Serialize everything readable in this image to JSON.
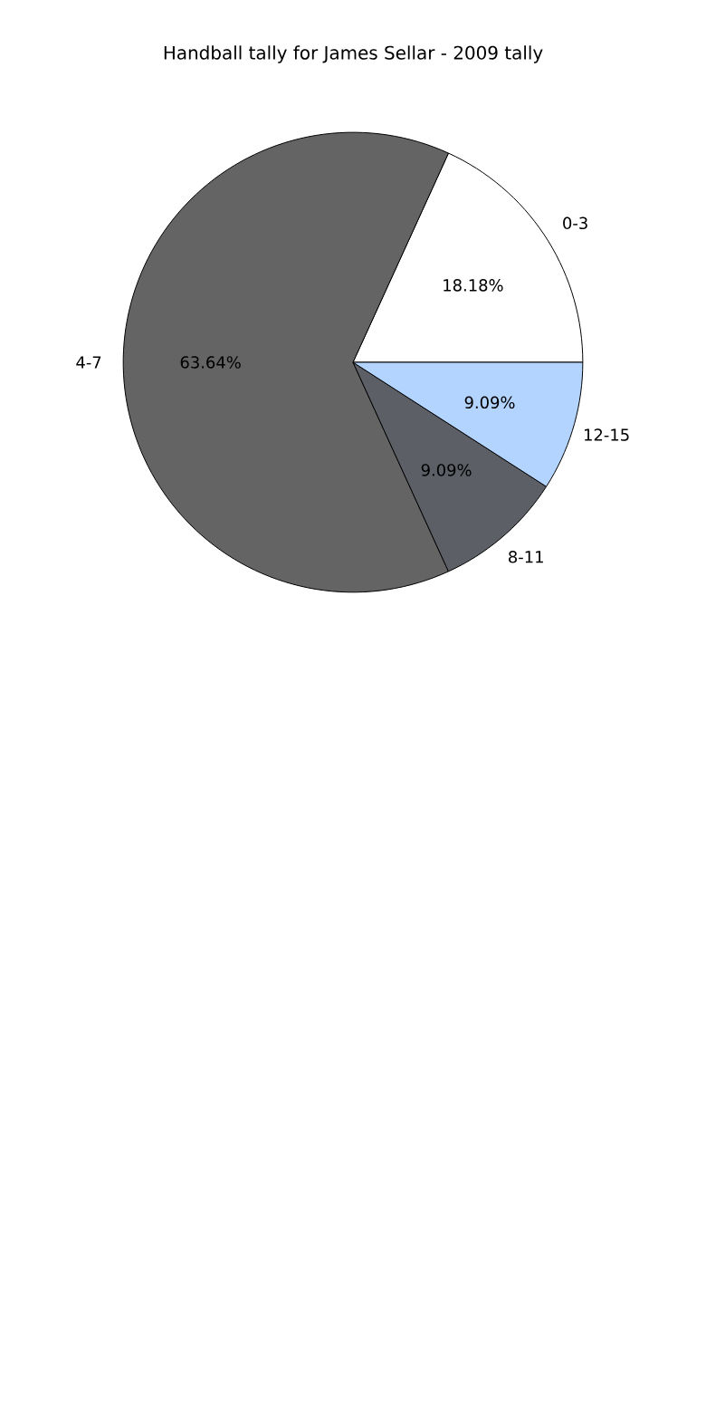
{
  "chart_data": {
    "type": "pie",
    "title": "Handball tally for James Sellar - 2009 tally",
    "categories": [
      "0-3",
      "4-7",
      "8-11",
      "12-15"
    ],
    "values": [
      18.18,
      63.64,
      9.09,
      9.09
    ],
    "colors": [
      "#ffffff",
      "#646464",
      "#5c5f66",
      "#b3d4ff"
    ],
    "value_labels": [
      "18.18%",
      "63.64%",
      "9.09%",
      "9.09%"
    ]
  }
}
